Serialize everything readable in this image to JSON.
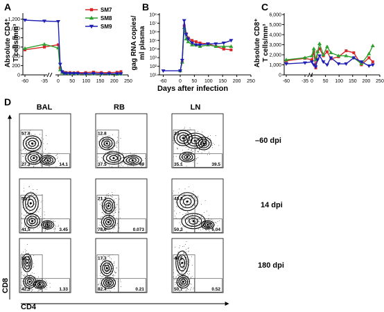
{
  "panels": {
    "A": {
      "letter": "A",
      "ylabel_line1": "Absolute CD4⁺",
      "ylabel_line2": "T cells/mm³",
      "y_ticks": [
        "0",
        "200",
        "400",
        "600",
        "800",
        "1,000",
        "1,200"
      ],
      "x_ticks": [
        "-60",
        "-35",
        "0",
        "50",
        "100",
        "150",
        "200",
        "250"
      ]
    },
    "B": {
      "letter": "B",
      "ylabel_line1": "gag RNA copies/",
      "ylabel_line2": "ml plasma",
      "y_ticks": [
        "10¹",
        "10²",
        "10³",
        "10⁴",
        "10⁵",
        "10⁶",
        "10⁷",
        "10⁸"
      ],
      "x_ticks": [
        "-60",
        "0",
        "50",
        "100",
        "150",
        "200",
        "250"
      ]
    },
    "C": {
      "letter": "C",
      "ylabel_line1": "Absolute CD8⁺",
      "ylabel_line2": "T cells/mm³",
      "y_ticks": [
        "0",
        "1,000",
        "2,000",
        "3,000",
        "4,000",
        "5,000",
        "6,000"
      ],
      "x_ticks": [
        "-60",
        "-35",
        "0",
        "50",
        "100",
        "150",
        "200",
        "250"
      ]
    },
    "D": {
      "letter": "D",
      "tissues": [
        "BAL",
        "RB",
        "LN"
      ],
      "timepoints": [
        "–60 dpi",
        "14 dpi",
        "180 dpi"
      ],
      "x_axis_label": "CD4",
      "y_axis_label": "CD8",
      "gate_values": [
        [
          [
            "57.8",
            "27.3",
            "14.1"
          ],
          [
            "12.8",
            "37.5",
            "49"
          ],
          [
            "23",
            "35.1",
            "39.5"
          ]
        ],
        [
          [
            "54.7",
            "41.5",
            "3.45"
          ],
          [
            "21.2",
            "78.6",
            "0.073"
          ],
          [
            "43.3",
            "50.2",
            "6.04"
          ]
        ],
        [
          [
            "56.1",
            "42.5",
            "1.33"
          ],
          [
            "17.3",
            "82.4",
            "0.21"
          ],
          [
            "48.5",
            "50.7",
            "0.52"
          ]
        ]
      ]
    }
  },
  "shared_xlabel": "Days after infection",
  "colors": {
    "SM7": "#d62728",
    "SM8": "#2ca02c",
    "SM9": "#1f1fb4"
  },
  "chart_data": [
    {
      "type": "line",
      "panel": "A",
      "ylabel": "Absolute CD4+ T cells/mm3",
      "xlabel": "Days after infection",
      "ylim": [
        0,
        1300
      ],
      "legend": "top-right",
      "series": [
        {
          "name": "SM7",
          "x": [
            -60,
            -35,
            0,
            7,
            14,
            21,
            28,
            42,
            56,
            70,
            98,
            126,
            154,
            182,
            210,
            224
          ],
          "y": [
            540,
            600,
            650,
            150,
            60,
            50,
            50,
            50,
            45,
            50,
            50,
            60,
            50,
            50,
            55,
            70
          ]
        },
        {
          "name": "SM8",
          "x": [
            -60,
            -35,
            0,
            7,
            14,
            21,
            28,
            42,
            56,
            70,
            98,
            126,
            154,
            182,
            210,
            224
          ],
          "y": [
            570,
            660,
            580,
            110,
            50,
            30,
            35,
            30,
            30,
            25,
            20,
            25,
            20,
            20,
            15,
            20
          ]
        },
        {
          "name": "SM9",
          "x": [
            -60,
            -35,
            0,
            7,
            14,
            21,
            28,
            42,
            56,
            70,
            98,
            126,
            154,
            182,
            210,
            224
          ],
          "y": [
            1180,
            1160,
            1150,
            230,
            70,
            35,
            35,
            30,
            30,
            30,
            25,
            30,
            25,
            25,
            25,
            25
          ]
        }
      ]
    },
    {
      "type": "line",
      "panel": "B",
      "ylabel": "gag RNA copies/ml plasma",
      "xlabel": "Days after infection",
      "yscale": "log",
      "ylim": [
        10,
        100000000
      ],
      "series": [
        {
          "name": "SM7",
          "x": [
            0,
            7,
            14,
            21,
            28,
            42,
            56,
            70,
            98,
            126,
            154,
            180
          ],
          "y": [
            30,
            300,
            5000000,
            600000,
            200000,
            100000,
            70000,
            50000,
            40000,
            20000,
            10000,
            8000
          ]
        },
        {
          "name": "SM8",
          "x": [
            0,
            7,
            14,
            21,
            28,
            42,
            56,
            70,
            98,
            126,
            154,
            180
          ],
          "y": [
            30,
            300,
            3000000,
            150000,
            70000,
            30000,
            30000,
            20000,
            30000,
            20000,
            20000,
            20000
          ]
        },
        {
          "name": "SM9",
          "x": [
            -60,
            0,
            7,
            14,
            21,
            28,
            42,
            56,
            70,
            98,
            126,
            154,
            180
          ],
          "y": [
            30,
            30,
            500,
            20000000,
            500000,
            150000,
            50000,
            30000,
            30000,
            40000,
            40000,
            50000,
            100000
          ]
        }
      ]
    },
    {
      "type": "line",
      "panel": "C",
      "ylabel": "Absolute CD8+ T cells/mm3",
      "xlabel": "Days after infection",
      "ylim": [
        0,
        6000
      ],
      "series": [
        {
          "name": "SM7",
          "x": [
            -60,
            -35,
            0,
            7,
            14,
            21,
            28,
            42,
            56,
            70,
            98,
            126,
            154,
            182,
            210,
            224
          ],
          "y": [
            1400,
            1650,
            1500,
            2300,
            700,
            2300,
            2600,
            1900,
            2300,
            1600,
            1800,
            2400,
            2200,
            1000,
            1700,
            1300
          ]
        },
        {
          "name": "SM8",
          "x": [
            -60,
            -35,
            0,
            7,
            14,
            21,
            28,
            42,
            56,
            70,
            98,
            126,
            154,
            182,
            210,
            224
          ],
          "y": [
            1500,
            1700,
            1900,
            2600,
            1500,
            2300,
            3100,
            2000,
            2800,
            2200,
            1900,
            1900,
            1700,
            1100,
            2100,
            2900
          ]
        },
        {
          "name": "SM9",
          "x": [
            -60,
            -35,
            0,
            7,
            14,
            21,
            28,
            42,
            56,
            70,
            98,
            126,
            154,
            182,
            210,
            224
          ],
          "y": [
            1100,
            1200,
            1300,
            1000,
            800,
            1500,
            1900,
            1300,
            1000,
            1700,
            1100,
            1100,
            1700,
            1300,
            900,
            1000
          ]
        }
      ]
    }
  ]
}
